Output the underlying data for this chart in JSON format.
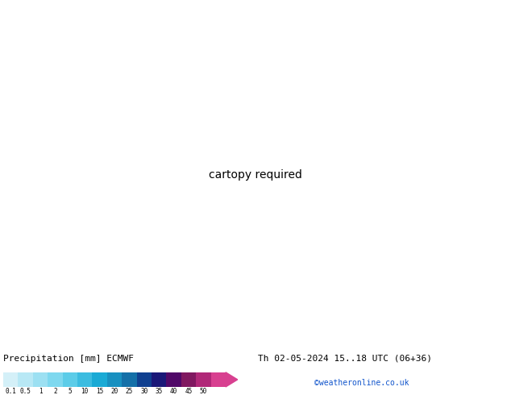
{
  "title_left": "Precipitation [mm] ECMWF",
  "title_right": "Th 02-05-2024 15..18 UTC (06+36)",
  "credit": "©weatheronline.co.uk",
  "colorbar_labels": [
    "0.1",
    "0.5",
    "1",
    "2",
    "5",
    "10",
    "15",
    "20",
    "25",
    "30",
    "35",
    "40",
    "45",
    "50"
  ],
  "colorbar_colors": [
    "#d4f0f8",
    "#b8e8f5",
    "#9ce0f2",
    "#7ed8ef",
    "#5ccce8",
    "#3cbce0",
    "#1aaad5",
    "#1890c0",
    "#1470a8",
    "#104090",
    "#1a1878",
    "#500868",
    "#801860",
    "#b02878",
    "#d84090"
  ],
  "land_color": "#c8dca0",
  "ocean_color": "#e8f4fa",
  "precip_light_color": "#b0e4f8",
  "precip_med_color": "#7acce8",
  "precip_dark_color": "#3090c0",
  "red_contour": "#cc0000",
  "blue_contour": "#0000bb",
  "fig_width": 6.34,
  "fig_height": 4.9,
  "lon_min": -35,
  "lon_max": 50,
  "lat_min": 25,
  "lat_max": 72
}
